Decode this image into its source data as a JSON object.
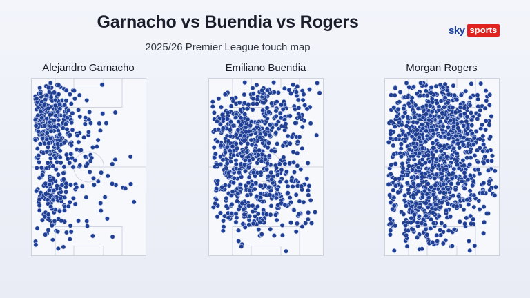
{
  "header": {
    "title": "Garnacho vs Buendia vs Rogers",
    "subtitle": "2025/26 Premier League touch map"
  },
  "brand": {
    "sky": "sky",
    "sports": "sports",
    "colors": {
      "sky": "#1a3e9c",
      "sports_bg": "#e1231f"
    }
  },
  "colors": {
    "dot_fill": "#1f3f94",
    "dot_stroke": "#c9d3ee",
    "pitch_lines": "#cfd3e0",
    "pitch_fill": "#f7f8fc"
  },
  "chart_data": [
    {
      "type": "scatter",
      "player": "Alejandro Garnacho",
      "seed": 11,
      "clusters": [
        {
          "x": 14,
          "y": 78,
          "sx": 10,
          "sy": 14,
          "n": 260
        },
        {
          "x": 15,
          "y": 34,
          "sx": 9,
          "sy": 12,
          "n": 130
        },
        {
          "x": 40,
          "y": 70,
          "sx": 18,
          "sy": 16,
          "n": 60
        },
        {
          "x": 55,
          "y": 40,
          "sx": 25,
          "sy": 25,
          "n": 40
        }
      ]
    },
    {
      "type": "scatter",
      "player": "Emiliano Buendia",
      "seed": 29,
      "clusters": [
        {
          "x": 30,
          "y": 70,
          "sx": 18,
          "sy": 14,
          "n": 330
        },
        {
          "x": 40,
          "y": 35,
          "sx": 24,
          "sy": 15,
          "n": 320
        },
        {
          "x": 70,
          "y": 85,
          "sx": 20,
          "sy": 10,
          "n": 80
        }
      ]
    },
    {
      "type": "scatter",
      "player": "Morgan Rogers",
      "seed": 53,
      "clusters": [
        {
          "x": 45,
          "y": 75,
          "sx": 28,
          "sy": 14,
          "n": 560
        },
        {
          "x": 45,
          "y": 38,
          "sx": 28,
          "sy": 16,
          "n": 480
        },
        {
          "x": 20,
          "y": 18,
          "sx": 15,
          "sy": 10,
          "n": 60
        }
      ]
    }
  ]
}
